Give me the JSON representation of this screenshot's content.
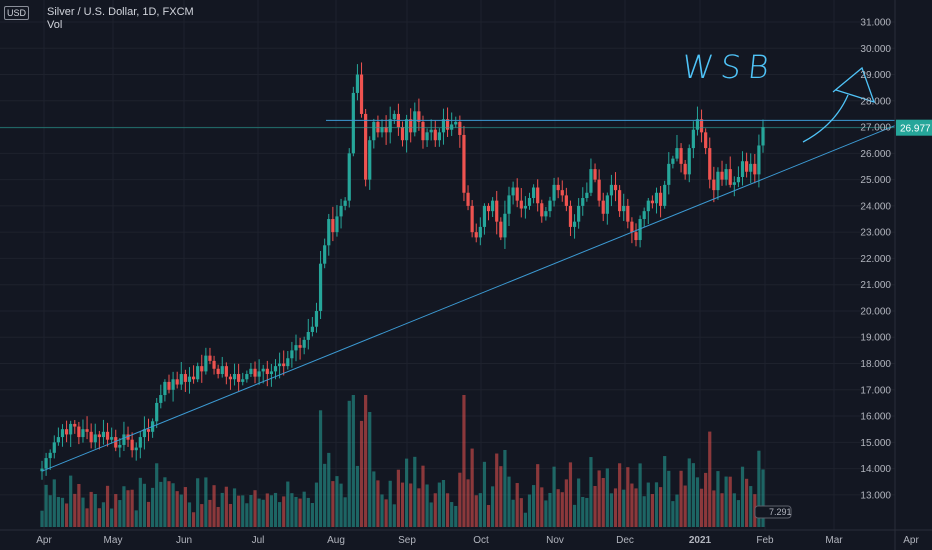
{
  "legend": {
    "title": "Silver / U.S. Dollar, 1D, FXCM",
    "indicator": "Vol"
  },
  "currency": "USD",
  "annotation": "WSB",
  "vol_badge": "7.291",
  "chart_data": {
    "type": "candlestick",
    "symbol": "Silver / U.S. Dollar",
    "ylim": [
      12.5,
      31.0
    ],
    "y_ticks": [
      "13.000",
      "14.000",
      "15.000",
      "16.000",
      "17.000",
      "18.000",
      "19.000",
      "20.000",
      "21.000",
      "22.000",
      "23.000",
      "24.000",
      "25.000",
      "26.000",
      "27.000",
      "28.000",
      "29.000",
      "30.000",
      "31.000"
    ],
    "x_ticks": [
      "Apr",
      "May",
      "Jun",
      "Jul",
      "Aug",
      "Sep",
      "Oct",
      "Nov",
      "Dec",
      "2021",
      "Feb",
      "Mar",
      "Apr"
    ],
    "current_price": "26.977",
    "horizontal_level": 27.2,
    "trendline": {
      "from": [
        "Apr",
        13.9
      ],
      "to": [
        "Apr",
        27.2
      ]
    },
    "series": [
      {
        "name": "Silver / U.S. Dollar",
        "close": [
          14.0,
          14.4,
          14.6,
          15.0,
          15.2,
          15.5,
          15.3,
          15.7,
          15.6,
          15.2,
          15.5,
          15.4,
          15.0,
          15.3,
          15.2,
          15.4,
          15.1,
          15.2,
          14.8,
          14.9,
          15.3,
          15.1,
          14.7,
          14.8,
          15.2,
          15.5,
          15.4,
          15.8,
          16.5,
          16.8,
          17.3,
          17.0,
          17.4,
          17.2,
          17.6,
          17.3,
          17.5,
          17.4,
          17.9,
          17.7,
          18.3,
          18.1,
          17.8,
          17.6,
          17.9,
          17.5,
          17.4,
          17.6,
          17.3,
          17.4,
          17.6,
          17.8,
          17.5,
          17.7,
          17.8,
          17.6,
          17.7,
          17.9,
          18.0,
          17.9,
          18.2,
          18.5,
          18.7,
          18.6,
          18.9,
          19.2,
          19.4,
          20.0,
          21.8,
          22.5,
          23.5,
          23.0,
          23.6,
          24.0,
          24.2,
          26.0,
          28.3,
          29.0,
          27.5,
          25.0,
          26.5,
          27.2,
          26.8,
          27.0,
          26.8,
          27.3,
          27.5,
          27.0,
          26.5,
          27.3,
          26.8,
          27.6,
          27.2,
          26.5,
          26.8,
          26.9,
          26.5,
          26.8,
          27.3,
          26.9,
          27.1,
          27.2,
          26.7,
          24.5,
          24.0,
          23.0,
          22.8,
          23.2,
          24.0,
          23.8,
          24.2,
          23.4,
          22.8,
          23.7,
          24.4,
          24.7,
          24.2,
          23.9,
          24.0,
          24.3,
          24.7,
          24.1,
          23.6,
          23.8,
          24.2,
          24.8,
          24.6,
          24.4,
          24.0,
          23.2,
          23.4,
          24.0,
          24.3,
          24.5,
          25.4,
          25.0,
          24.2,
          23.7,
          24.4,
          24.8,
          24.6,
          23.8,
          24.0,
          23.4,
          23.0,
          22.7,
          23.5,
          23.8,
          24.2,
          24.1,
          24.5,
          24.0,
          24.8,
          25.6,
          25.8,
          26.2,
          25.6,
          25.2,
          26.2,
          26.9,
          27.3,
          26.8,
          26.2,
          25.0,
          24.6,
          25.3,
          25.0,
          25.4,
          24.8,
          24.9,
          25.1,
          25.7,
          25.3,
          25.6,
          25.2,
          26.3,
          27.0
        ]
      }
    ]
  },
  "colors": {
    "up": "#26a69a",
    "down": "#ef5350",
    "line": "#3c9ad3",
    "background": "#131722"
  }
}
